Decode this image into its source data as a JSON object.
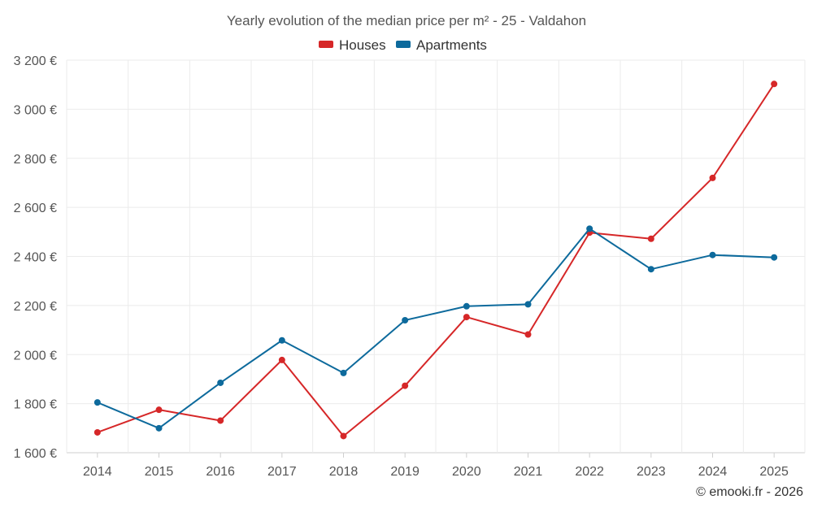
{
  "chart_data": {
    "type": "line",
    "title": "Yearly evolution of the median price per m² - 25 - Valdahon",
    "categories": [
      "2014",
      "2015",
      "2016",
      "2017",
      "2018",
      "2019",
      "2020",
      "2021",
      "2022",
      "2023",
      "2024",
      "2025"
    ],
    "series": [
      {
        "name": "Houses",
        "color": "#d62728",
        "values": [
          1683,
          1775,
          1731,
          1978,
          1668,
          1873,
          2153,
          2082,
          2497,
          2472,
          2720,
          3103
        ]
      },
      {
        "name": "Apartments",
        "color": "#0d6a9c",
        "values": [
          1805,
          1700,
          1885,
          2058,
          1925,
          2140,
          2197,
          2205,
          2513,
          2348,
          2406,
          2396
        ]
      }
    ],
    "ylim": [
      1600,
      3200
    ],
    "yticks": [
      1600,
      1800,
      2000,
      2200,
      2400,
      2600,
      2800,
      3000,
      3200
    ],
    "ytick_labels": [
      "1 600 €",
      "1 800 €",
      "2 000 €",
      "2 200 €",
      "2 400 €",
      "2 600 €",
      "2 800 €",
      "3 000 €",
      "3 200 €"
    ],
    "xlabel": "",
    "ylabel": "",
    "grid": true,
    "legend_position": "top-center"
  },
  "credit": "© emooki.fr - 2026"
}
